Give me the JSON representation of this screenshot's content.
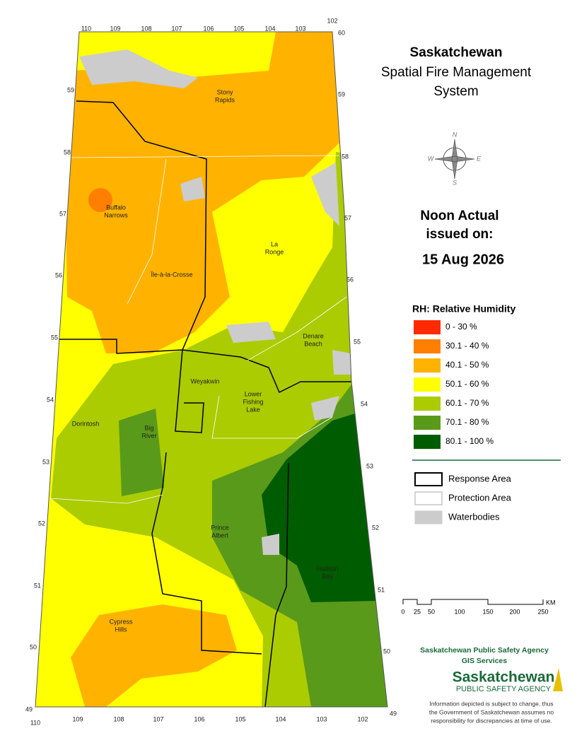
{
  "title": {
    "line1": "Saskatchewan",
    "line2": "Spatial Fire Management",
    "line3": "System"
  },
  "compass": {
    "n": "N",
    "w": "W",
    "e": "E",
    "s": "S"
  },
  "issue": {
    "line1": "Noon Actual",
    "line2": "issued on:",
    "date": "15 Aug 2026"
  },
  "legend": {
    "title": "RH: Relative Humidity",
    "classes": [
      {
        "label": "0 - 30 %",
        "color": "#ff2a00"
      },
      {
        "label": "30.1 - 40 %",
        "color": "#ff7f00"
      },
      {
        "label": "40.1 - 50 %",
        "color": "#ffb300"
      },
      {
        "label": "50.1 - 60 %",
        "color": "#ffff00"
      },
      {
        "label": "60.1 - 70 %",
        "color": "#aacc00"
      },
      {
        "label": "70.1 - 80 %",
        "color": "#5a9a1a"
      },
      {
        "label": "80.1 - 100 %",
        "color": "#005c00"
      }
    ],
    "boundaries": [
      {
        "label": "Response Area",
        "stroke": "#000000",
        "fill": "#ffffff"
      },
      {
        "label": "Protection Area",
        "stroke": "#aaaaaa",
        "fill": "#ffffff"
      },
      {
        "label": "Waterbodies",
        "stroke": "#cccccc",
        "fill": "#cccccc"
      }
    ]
  },
  "scale": {
    "ticks": [
      "0",
      "25",
      "50",
      "100",
      "150",
      "200",
      "250"
    ],
    "unit": "KM"
  },
  "credits": {
    "agency": "Saskatchewan Public Safety Agency",
    "unit": "GIS  Services",
    "logo_main": "Saskatchewan",
    "logo_sub": "PUBLIC SAFETY AGENCY",
    "disclaimer": [
      "Information depicted is subject to change, thus",
      "the Government of Saskatchewan assumes no",
      "responsibility for discrepancies at time of use."
    ]
  },
  "graticule": {
    "lon_top": [
      "110",
      "109",
      "108",
      "107",
      "106",
      "105",
      "104",
      "103",
      "102"
    ],
    "lat_top": "60",
    "lat_left": [
      "59",
      "58",
      "57",
      "56",
      "55",
      "54",
      "53",
      "52",
      "51",
      "50",
      "49"
    ],
    "lat_right": [
      "59",
      "58",
      "57",
      "56",
      "55",
      "54",
      "53",
      "52",
      "51",
      "50",
      "49"
    ],
    "lon_bottom": [
      "110",
      "109",
      "108",
      "107",
      "106",
      "105",
      "104",
      "103",
      "102"
    ]
  },
  "places": [
    {
      "lines": [
        "Stony",
        "Rapids"
      ]
    },
    {
      "lines": [
        "Buffalo",
        "Narrows"
      ]
    },
    {
      "lines": [
        "Île-à-la-Crosse"
      ]
    },
    {
      "lines": [
        "La",
        "Ronge"
      ]
    },
    {
      "lines": [
        "Denare",
        "Beach"
      ]
    },
    {
      "lines": [
        "Weyakwin"
      ]
    },
    {
      "lines": [
        "Lower",
        "Fishing",
        "Lake"
      ]
    },
    {
      "lines": [
        "Dorintosh"
      ]
    },
    {
      "lines": [
        "Big",
        "River"
      ]
    },
    {
      "lines": [
        "Prince",
        "Albert"
      ]
    },
    {
      "lines": [
        "Hudson",
        "Bay"
      ]
    },
    {
      "lines": [
        "Cypress",
        "Hills"
      ]
    }
  ]
}
